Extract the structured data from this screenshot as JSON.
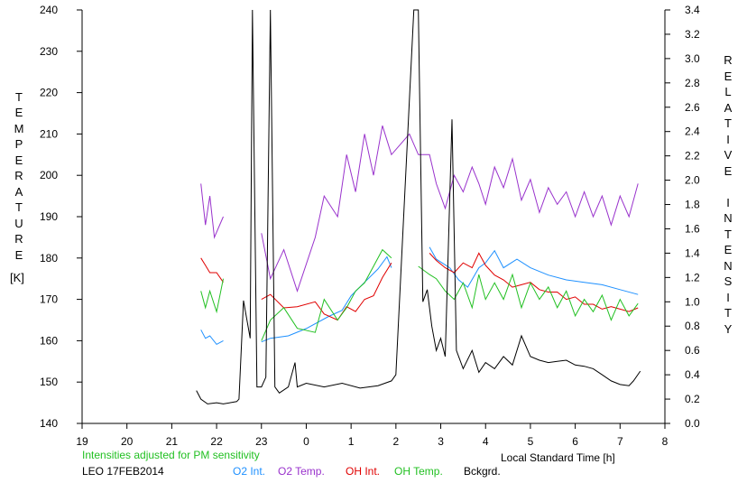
{
  "chart_data": {
    "type": "line",
    "title": "",
    "xlabel": "Local Standard Time [h]",
    "ylabel_left": "TEMPERATURE",
    "ylabel_left_unit": "[K]",
    "ylabel_right": "RELATIVE INTENSITY",
    "x_ticks": [
      "19",
      "20",
      "21",
      "22",
      "23",
      "0",
      "1",
      "2",
      "3",
      "4",
      "5",
      "6",
      "7",
      "8"
    ],
    "xlim": [
      19,
      32
    ],
    "ylim_left": [
      140,
      240
    ],
    "ylim_right": [
      0.0,
      3.4
    ],
    "y_left_ticks": [
      140,
      150,
      160,
      170,
      180,
      190,
      200,
      210,
      220,
      230,
      240
    ],
    "y_right_ticks": [
      "0.0",
      "0.2",
      "0.4",
      "0.6",
      "0.8",
      "1.0",
      "1.2",
      "1.4",
      "1.6",
      "1.8",
      "2.0",
      "2.2",
      "2.4",
      "2.6",
      "2.8",
      "3.0",
      "3.2",
      "3.4"
    ],
    "note": "Intensities adjusted for PM sensitivity",
    "station_date": "LEO 17FEB2014",
    "grid": false,
    "series": [
      {
        "name": "O2 Int.",
        "axis": "right",
        "color": "#1e90ff",
        "points": [
          [
            21.65,
            0.77
          ],
          [
            21.75,
            0.7
          ],
          [
            21.85,
            0.72
          ],
          [
            22.0,
            0.65
          ],
          [
            22.15,
            0.68
          ],
          [
            23.0,
            0.67
          ],
          [
            23.2,
            0.7
          ],
          [
            23.6,
            0.72
          ],
          [
            24.0,
            0.78
          ],
          [
            24.5,
            0.88
          ],
          [
            24.8,
            0.93
          ],
          [
            25.0,
            1.05
          ],
          [
            25.3,
            1.16
          ],
          [
            25.6,
            1.27
          ],
          [
            25.8,
            1.37
          ],
          [
            25.9,
            1.28
          ],
          [
            26.75,
            1.45
          ],
          [
            26.9,
            1.35
          ],
          [
            27.2,
            1.28
          ],
          [
            27.4,
            1.18
          ],
          [
            27.6,
            1.12
          ],
          [
            27.85,
            1.28
          ],
          [
            28.0,
            1.32
          ],
          [
            28.2,
            1.42
          ],
          [
            28.4,
            1.28
          ],
          [
            28.7,
            1.35
          ],
          [
            29.0,
            1.28
          ],
          [
            29.4,
            1.22
          ],
          [
            29.8,
            1.18
          ],
          [
            30.2,
            1.16
          ],
          [
            30.6,
            1.14
          ],
          [
            31.0,
            1.1
          ],
          [
            31.4,
            1.06
          ]
        ]
      },
      {
        "name": "O2 Temp.",
        "axis": "left",
        "color": "#9932cc",
        "points": [
          [
            21.65,
            198
          ],
          [
            21.75,
            188
          ],
          [
            21.85,
            195
          ],
          [
            21.95,
            185
          ],
          [
            22.15,
            190
          ],
          [
            23.0,
            186
          ],
          [
            23.2,
            175
          ],
          [
            23.5,
            182
          ],
          [
            23.8,
            172
          ],
          [
            24.2,
            185
          ],
          [
            24.4,
            195
          ],
          [
            24.7,
            190
          ],
          [
            24.9,
            205
          ],
          [
            25.1,
            196
          ],
          [
            25.3,
            210
          ],
          [
            25.5,
            200
          ],
          [
            25.7,
            212
          ],
          [
            25.9,
            205
          ],
          [
            26.3,
            210
          ],
          [
            26.5,
            205
          ],
          [
            26.75,
            205
          ],
          [
            26.9,
            198
          ],
          [
            27.1,
            192
          ],
          [
            27.3,
            200
          ],
          [
            27.5,
            196
          ],
          [
            27.7,
            202
          ],
          [
            27.85,
            198
          ],
          [
            28.0,
            193
          ],
          [
            28.2,
            202
          ],
          [
            28.4,
            197
          ],
          [
            28.6,
            204
          ],
          [
            28.8,
            194
          ],
          [
            29.0,
            199
          ],
          [
            29.2,
            191
          ],
          [
            29.4,
            197
          ],
          [
            29.6,
            193
          ],
          [
            29.8,
            196
          ],
          [
            30.0,
            190
          ],
          [
            30.2,
            196
          ],
          [
            30.4,
            190
          ],
          [
            30.6,
            195
          ],
          [
            30.8,
            188
          ],
          [
            31.0,
            195
          ],
          [
            31.2,
            190
          ],
          [
            31.4,
            198
          ]
        ]
      },
      {
        "name": "OH Int.",
        "axis": "right",
        "color": "#e00000",
        "points": [
          [
            21.65,
            1.36
          ],
          [
            21.75,
            1.3
          ],
          [
            21.85,
            1.24
          ],
          [
            22.0,
            1.24
          ],
          [
            22.15,
            1.16
          ],
          [
            23.0,
            1.02
          ],
          [
            23.2,
            1.06
          ],
          [
            23.5,
            0.95
          ],
          [
            23.8,
            0.96
          ],
          [
            24.2,
            1.0
          ],
          [
            24.4,
            0.9
          ],
          [
            24.7,
            0.85
          ],
          [
            24.9,
            0.96
          ],
          [
            25.1,
            0.92
          ],
          [
            25.3,
            1.02
          ],
          [
            25.5,
            1.05
          ],
          [
            25.7,
            1.2
          ],
          [
            25.9,
            1.32
          ],
          [
            26.75,
            1.4
          ],
          [
            26.9,
            1.34
          ],
          [
            27.1,
            1.28
          ],
          [
            27.3,
            1.24
          ],
          [
            27.5,
            1.32
          ],
          [
            27.7,
            1.28
          ],
          [
            27.85,
            1.4
          ],
          [
            28.0,
            1.3
          ],
          [
            28.2,
            1.22
          ],
          [
            28.4,
            1.18
          ],
          [
            28.6,
            1.12
          ],
          [
            28.8,
            1.14
          ],
          [
            29.0,
            1.16
          ],
          [
            29.2,
            1.1
          ],
          [
            29.4,
            1.08
          ],
          [
            29.6,
            1.08
          ],
          [
            29.8,
            1.02
          ],
          [
            30.0,
            1.04
          ],
          [
            30.2,
            0.98
          ],
          [
            30.4,
            0.98
          ],
          [
            30.6,
            0.94
          ],
          [
            30.8,
            0.96
          ],
          [
            31.0,
            0.94
          ],
          [
            31.2,
            0.92
          ],
          [
            31.4,
            0.95
          ]
        ]
      },
      {
        "name": "OH Temp.",
        "axis": "left",
        "color": "#22c022",
        "points": [
          [
            21.65,
            172
          ],
          [
            21.75,
            168
          ],
          [
            21.85,
            172
          ],
          [
            22.0,
            167
          ],
          [
            22.15,
            175
          ],
          [
            23.0,
            160
          ],
          [
            23.2,
            165
          ],
          [
            23.5,
            168
          ],
          [
            23.8,
            163
          ],
          [
            24.2,
            162
          ],
          [
            24.4,
            170
          ],
          [
            24.7,
            165
          ],
          [
            24.9,
            168
          ],
          [
            25.1,
            172
          ],
          [
            25.3,
            174
          ],
          [
            25.5,
            178
          ],
          [
            25.7,
            182
          ],
          [
            25.9,
            180
          ],
          [
            26.5,
            178
          ],
          [
            26.75,
            176
          ],
          [
            26.9,
            175
          ],
          [
            27.1,
            172
          ],
          [
            27.3,
            170
          ],
          [
            27.5,
            174
          ],
          [
            27.7,
            168
          ],
          [
            27.85,
            176
          ],
          [
            28.0,
            170
          ],
          [
            28.2,
            174
          ],
          [
            28.4,
            170
          ],
          [
            28.6,
            176
          ],
          [
            28.8,
            168
          ],
          [
            29.0,
            174
          ],
          [
            29.2,
            170
          ],
          [
            29.4,
            173
          ],
          [
            29.6,
            168
          ],
          [
            29.8,
            172
          ],
          [
            30.0,
            166
          ],
          [
            30.2,
            170
          ],
          [
            30.4,
            167
          ],
          [
            30.6,
            171
          ],
          [
            30.8,
            165
          ],
          [
            31.0,
            170
          ],
          [
            31.2,
            166
          ],
          [
            31.4,
            169
          ]
        ]
      },
      {
        "name": "Bckgrd.",
        "axis": "right",
        "color": "#000000",
        "points": [
          [
            21.55,
            0.27
          ],
          [
            21.65,
            0.2
          ],
          [
            21.8,
            0.16
          ],
          [
            22.0,
            0.17
          ],
          [
            22.15,
            0.16
          ],
          [
            22.45,
            0.18
          ],
          [
            22.5,
            0.2
          ],
          [
            22.6,
            1.01
          ],
          [
            22.75,
            0.7
          ],
          [
            22.8,
            3.4
          ],
          [
            22.9,
            0.3
          ],
          [
            23.0,
            0.3
          ],
          [
            23.1,
            0.38
          ],
          [
            23.2,
            3.4
          ],
          [
            23.3,
            0.3
          ],
          [
            23.4,
            0.25
          ],
          [
            23.6,
            0.3
          ],
          [
            23.75,
            0.5
          ],
          [
            23.8,
            0.3
          ],
          [
            24.0,
            0.33
          ],
          [
            24.4,
            0.3
          ],
          [
            24.8,
            0.33
          ],
          [
            25.2,
            0.29
          ],
          [
            25.6,
            0.31
          ],
          [
            25.9,
            0.35
          ],
          [
            26.0,
            0.4
          ],
          [
            26.4,
            3.4
          ],
          [
            26.5,
            3.4
          ],
          [
            26.6,
            1.0
          ],
          [
            26.7,
            1.1
          ],
          [
            26.8,
            0.8
          ],
          [
            26.9,
            0.6
          ],
          [
            27.0,
            0.7
          ],
          [
            27.1,
            0.55
          ],
          [
            27.25,
            2.5
          ],
          [
            27.35,
            0.6
          ],
          [
            27.5,
            0.45
          ],
          [
            27.7,
            0.6
          ],
          [
            27.85,
            0.42
          ],
          [
            28.0,
            0.5
          ],
          [
            28.2,
            0.45
          ],
          [
            28.4,
            0.55
          ],
          [
            28.6,
            0.48
          ],
          [
            28.8,
            0.72
          ],
          [
            29.0,
            0.55
          ],
          [
            29.2,
            0.52
          ],
          [
            29.4,
            0.5
          ],
          [
            29.6,
            0.51
          ],
          [
            29.8,
            0.52
          ],
          [
            30.0,
            0.48
          ],
          [
            30.2,
            0.47
          ],
          [
            30.4,
            0.45
          ],
          [
            30.6,
            0.4
          ],
          [
            30.8,
            0.35
          ],
          [
            31.0,
            0.32
          ],
          [
            31.2,
            0.31
          ],
          [
            31.3,
            0.35
          ],
          [
            31.45,
            0.43
          ]
        ]
      }
    ]
  }
}
